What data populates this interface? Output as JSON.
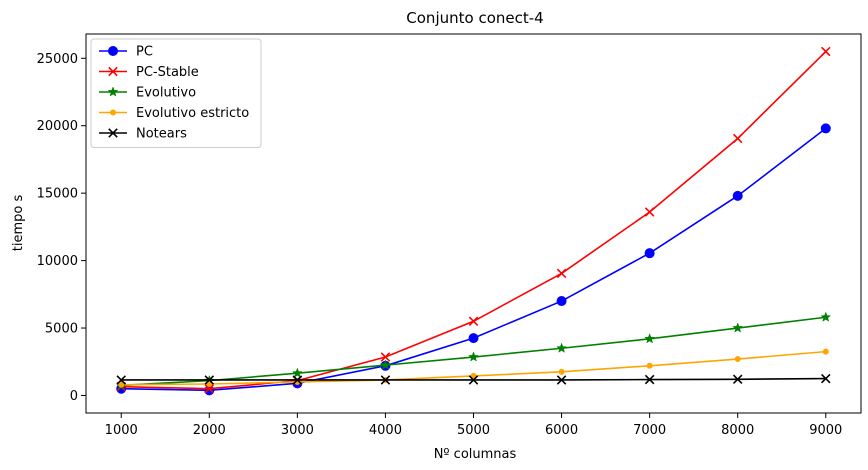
{
  "chart_data": {
    "type": "line",
    "title": "Conjunto conect-4",
    "xlabel": "Nº columnas",
    "ylabel": "tiempo s",
    "x": [
      1000,
      2000,
      3000,
      4000,
      5000,
      6000,
      7000,
      8000,
      9000
    ],
    "x_ticks": [
      1000,
      2000,
      3000,
      4000,
      5000,
      6000,
      7000,
      8000,
      9000
    ],
    "y_ticks": [
      0,
      5000,
      10000,
      15000,
      20000,
      25000
    ],
    "xlim": [
      600,
      9400
    ],
    "ylim": [
      -1300,
      26800
    ],
    "grid": false,
    "legend_position": "top-left",
    "series": [
      {
        "name": "PC",
        "color": "#0000ff",
        "marker": "circle",
        "values": [
          500,
          380,
          900,
          2200,
          4250,
          7000,
          10550,
          14800,
          19800
        ]
      },
      {
        "name": "PC-Stable",
        "color": "#ff0000",
        "marker": "x",
        "values": [
          650,
          500,
          1100,
          2850,
          5500,
          9050,
          13600,
          19050,
          25500
        ]
      },
      {
        "name": "Evolutivo",
        "color": "#008000",
        "marker": "star",
        "values": [
          750,
          1100,
          1650,
          2250,
          2850,
          3500,
          4200,
          5000,
          5800
        ]
      },
      {
        "name": "Evolutivo estricto",
        "color": "#ffa500",
        "marker": "point",
        "values": [
          800,
          850,
          1000,
          1150,
          1450,
          1750,
          2200,
          2700,
          3250
        ]
      },
      {
        "name": "Notears",
        "color": "#000000",
        "marker": "x",
        "values": [
          1150,
          1150,
          1150,
          1150,
          1150,
          1150,
          1180,
          1200,
          1250
        ]
      }
    ]
  }
}
